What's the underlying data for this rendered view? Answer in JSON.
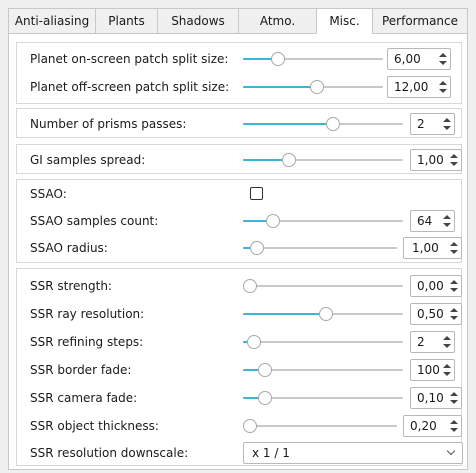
{
  "tabs": [
    {
      "label": "Anti-aliasing",
      "active": false
    },
    {
      "label": "Plants",
      "active": false
    },
    {
      "label": "Shadows",
      "active": false
    },
    {
      "label": "Atmo.",
      "active": false
    },
    {
      "label": "Misc.",
      "active": true
    },
    {
      "label": "Performance",
      "active": false
    }
  ],
  "colors": {
    "accent": "#3cb4d8"
  },
  "planet": {
    "onscreen_split": {
      "label": "Planet on-screen patch split size:",
      "value": "6,00",
      "fraction": 0.22
    },
    "offscreen_split": {
      "label": "Planet off-screen patch split size:",
      "value": "12,00",
      "fraction": 0.53
    }
  },
  "prisms": {
    "label": "Number of prisms passes:",
    "value": "2",
    "fraction": 0.57
  },
  "gi": {
    "label": "GI samples spread:",
    "value": "1,00",
    "fraction": 0.27
  },
  "ssao": {
    "enabled": {
      "label": "SSAO:",
      "checked": false
    },
    "samples": {
      "label": "SSAO samples count:",
      "value": "64",
      "fraction": 0.16
    },
    "radius": {
      "label": "SSAO radius:",
      "value": "1,00",
      "fraction": 0.05
    }
  },
  "ssr": {
    "strength": {
      "label": "SSR strength:",
      "value": "0,00",
      "fraction": 0.0
    },
    "ray_resolution": {
      "label": "SSR ray resolution:",
      "value": "0,50",
      "fraction": 0.52
    },
    "refining_steps": {
      "label": "SSR refining steps:",
      "value": "2",
      "fraction": 0.03
    },
    "border_fade": {
      "label": "SSR border fade:",
      "value": "100",
      "fraction": 0.1
    },
    "camera_fade": {
      "label": "SSR camera fade:",
      "value": "0,10",
      "fraction": 0.1
    },
    "object_thickness": {
      "label": "SSR object thickness:",
      "value": "0,20",
      "fraction": 0.0
    },
    "downscale": {
      "label": "SSR resolution downscale:",
      "value": "x 1 / 1"
    }
  }
}
